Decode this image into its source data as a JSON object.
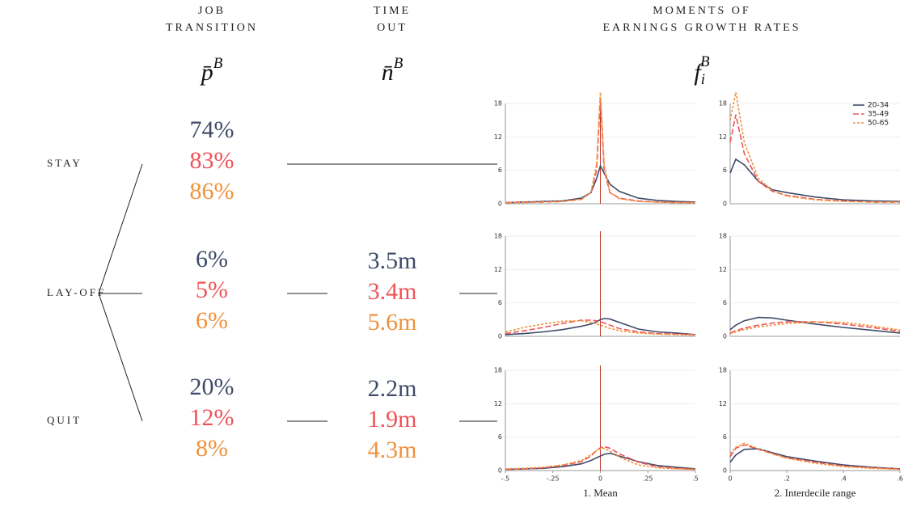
{
  "header": {
    "columns": [
      {
        "label_lines": [
          "JOB",
          "TRANSITION"
        ],
        "symbol": "p̄",
        "superscript": "B"
      },
      {
        "label_lines": [
          "TIME",
          "OUT"
        ],
        "symbol": "n̄",
        "superscript": "B"
      },
      {
        "label_lines": [
          "MOMENTS OF",
          "EARNINGS GROWTH RATES"
        ],
        "symbol": "f",
        "subscript": "i",
        "superscript": "B"
      }
    ]
  },
  "group_colors": [
    "#3e4a68",
    "#ef5358",
    "#f0923b"
  ],
  "rows": [
    {
      "label": "STAY",
      "shares": [
        "74%",
        "83%",
        "86%"
      ]
    },
    {
      "label": "LAY-OFF",
      "shares": [
        "6%",
        "5%",
        "6%"
      ],
      "time_out": [
        "3.5m",
        "3.4m",
        "5.6m"
      ]
    },
    {
      "label": "QUIT",
      "shares": [
        "20%",
        "12%",
        "8%"
      ],
      "time_out": [
        "2.2m",
        "1.9m",
        "4.3m"
      ]
    }
  ],
  "chart_data": [
    {
      "type": "line",
      "x": [
        -0.5,
        -0.4,
        -0.3,
        -0.2,
        -0.1,
        -0.05,
        -0.02,
        0,
        0.02,
        0.05,
        0.1,
        0.2,
        0.3,
        0.4,
        0.5
      ],
      "xlim": [
        -0.5,
        0.5
      ],
      "ylim": [
        0,
        18
      ],
      "yticks": [
        0,
        6,
        12,
        18
      ],
      "grid": true,
      "reference_line": 0,
      "series": [
        {
          "color": "#3e4a68",
          "dash": "solid",
          "values": [
            0.2,
            0.3,
            0.4,
            0.5,
            1,
            2,
            4.5,
            6.8,
            5.5,
            3.5,
            2.2,
            1,
            0.6,
            0.4,
            0.3
          ]
        },
        {
          "color": "#ef5358",
          "dash": "dashed",
          "values": [
            0.2,
            0.3,
            0.3,
            0.4,
            0.8,
            2,
            6,
            19,
            6,
            2,
            1,
            0.5,
            0.3,
            0.2,
            0.2
          ]
        },
        {
          "color": "#f0923b",
          "dash": "dotted",
          "values": [
            0.2,
            0.2,
            0.3,
            0.4,
            0.8,
            2,
            7,
            20,
            7,
            2,
            0.9,
            0.4,
            0.3,
            0.2,
            0.2
          ]
        }
      ]
    },
    {
      "type": "line",
      "x": [
        0,
        0.02,
        0.05,
        0.1,
        0.15,
        0.2,
        0.3,
        0.4,
        0.5,
        0.6
      ],
      "xlim": [
        0,
        0.6
      ],
      "ylim": [
        0,
        18
      ],
      "yticks": [
        0,
        6,
        12,
        18
      ],
      "grid": true,
      "legend": "top-right",
      "series": [
        {
          "name": "20-34",
          "color": "#3e4a68",
          "dash": "solid",
          "values": [
            5.5,
            8,
            7,
            4,
            2.5,
            2,
            1.2,
            0.7,
            0.5,
            0.4
          ]
        },
        {
          "name": "35-49",
          "color": "#ef5358",
          "dash": "dashed",
          "values": [
            11,
            16,
            9,
            4,
            2.2,
            1.5,
            0.8,
            0.5,
            0.3,
            0.3
          ]
        },
        {
          "name": "50-65",
          "color": "#f0923b",
          "dash": "dotted",
          "values": [
            15,
            20,
            11,
            4.5,
            2.3,
            1.4,
            0.7,
            0.4,
            0.3,
            0.3
          ]
        }
      ]
    },
    {
      "type": "line",
      "x": [
        -0.5,
        -0.4,
        -0.3,
        -0.2,
        -0.1,
        -0.05,
        -0.02,
        0,
        0.02,
        0.05,
        0.1,
        0.2,
        0.3,
        0.4,
        0.5
      ],
      "xlim": [
        -0.5,
        0.5
      ],
      "ylim": [
        0,
        18
      ],
      "yticks": [
        0,
        6,
        12,
        18
      ],
      "grid": true,
      "reference_line": 0,
      "series": [
        {
          "color": "#3e4a68",
          "dash": "solid",
          "values": [
            0.3,
            0.5,
            0.8,
            1.2,
            1.8,
            2.2,
            2.6,
            3,
            3.2,
            3.1,
            2.5,
            1.3,
            0.8,
            0.6,
            0.3
          ]
        },
        {
          "color": "#ef5358",
          "dash": "dashed",
          "values": [
            0.5,
            1,
            1.6,
            2.3,
            2.9,
            2.9,
            2.8,
            2.6,
            2.4,
            2,
            1.4,
            0.8,
            0.5,
            0.4,
            0.3
          ]
        },
        {
          "color": "#f0923b",
          "dash": "dotted",
          "values": [
            0.8,
            1.6,
            2.2,
            2.7,
            2.8,
            2.5,
            2.2,
            2,
            1.8,
            1.4,
            1,
            0.6,
            0.4,
            0.3,
            0.2
          ]
        }
      ]
    },
    {
      "type": "line",
      "x": [
        0,
        0.02,
        0.05,
        0.1,
        0.15,
        0.2,
        0.3,
        0.4,
        0.5,
        0.6
      ],
      "xlim": [
        0,
        0.6
      ],
      "ylim": [
        0,
        18
      ],
      "yticks": [
        0,
        6,
        12,
        18
      ],
      "grid": true,
      "series": [
        {
          "color": "#3e4a68",
          "dash": "solid",
          "values": [
            1.2,
            2,
            2.8,
            3.4,
            3.3,
            2.9,
            2.2,
            1.6,
            1.1,
            0.6
          ]
        },
        {
          "color": "#ef5358",
          "dash": "dashed",
          "values": [
            0.6,
            1,
            1.5,
            2,
            2.4,
            2.6,
            2.6,
            2.2,
            1.6,
            0.9
          ]
        },
        {
          "color": "#f0923b",
          "dash": "dotted",
          "values": [
            0.5,
            0.8,
            1.2,
            1.7,
            2,
            2.3,
            2.6,
            2.5,
            1.9,
            1.1
          ]
        }
      ]
    },
    {
      "type": "line",
      "x": [
        -0.5,
        -0.4,
        -0.3,
        -0.2,
        -0.1,
        -0.05,
        -0.02,
        0,
        0.02,
        0.05,
        0.1,
        0.2,
        0.3,
        0.4,
        0.5
      ],
      "xlim": [
        -0.5,
        0.5
      ],
      "ylim": [
        0,
        18
      ],
      "yticks": [
        0,
        6,
        12,
        18
      ],
      "grid": true,
      "reference_line": 0,
      "xticks": [
        {
          "value": -0.5,
          "label": "-.5"
        },
        {
          "value": -0.25,
          "label": "-.25"
        },
        0,
        {
          "value": 0.25,
          "label": ".25"
        },
        {
          "value": 0.5,
          "label": ".5"
        }
      ],
      "xlabel": "1. Mean",
      "series": [
        {
          "color": "#3e4a68",
          "dash": "solid",
          "values": [
            0.2,
            0.3,
            0.4,
            0.7,
            1.2,
            1.8,
            2.3,
            2.6,
            2.9,
            3.1,
            2.6,
            1.6,
            0.9,
            0.6,
            0.3
          ]
        },
        {
          "color": "#ef5358",
          "dash": "dashed",
          "values": [
            0.2,
            0.3,
            0.5,
            0.9,
            1.6,
            2.6,
            3.6,
            4.1,
            4.3,
            4,
            3,
            1.5,
            0.7,
            0.4,
            0.2
          ]
        },
        {
          "color": "#f0923b",
          "dash": "dotted",
          "values": [
            0.3,
            0.4,
            0.6,
            1,
            1.8,
            2.8,
            3.6,
            3.9,
            4,
            3.5,
            2.4,
            1,
            0.5,
            0.3,
            0.2
          ]
        }
      ]
    },
    {
      "type": "line",
      "x": [
        0,
        0.02,
        0.05,
        0.1,
        0.15,
        0.2,
        0.3,
        0.4,
        0.5,
        0.6
      ],
      "xlim": [
        0,
        0.6
      ],
      "ylim": [
        0,
        18
      ],
      "yticks": [
        0,
        6,
        12,
        18
      ],
      "grid": true,
      "xticks": [
        0,
        {
          "value": 0.2,
          "label": ".2"
        },
        {
          "value": 0.4,
          "label": ".4"
        },
        {
          "value": 0.6,
          "label": ".6"
        }
      ],
      "xlabel": "2. Interdecile range",
      "series": [
        {
          "color": "#3e4a68",
          "dash": "solid",
          "values": [
            1.5,
            2.8,
            3.8,
            3.9,
            3.2,
            2.5,
            1.7,
            1,
            0.6,
            0.3
          ]
        },
        {
          "color": "#ef5358",
          "dash": "dashed",
          "values": [
            2.5,
            4,
            4.6,
            3.8,
            3,
            2.3,
            1.5,
            0.8,
            0.5,
            0.3
          ]
        },
        {
          "color": "#f0923b",
          "dash": "dotted",
          "values": [
            3,
            4.2,
            4.9,
            3.9,
            3,
            2.2,
            1.3,
            0.7,
            0.4,
            0.2
          ]
        }
      ]
    }
  ]
}
